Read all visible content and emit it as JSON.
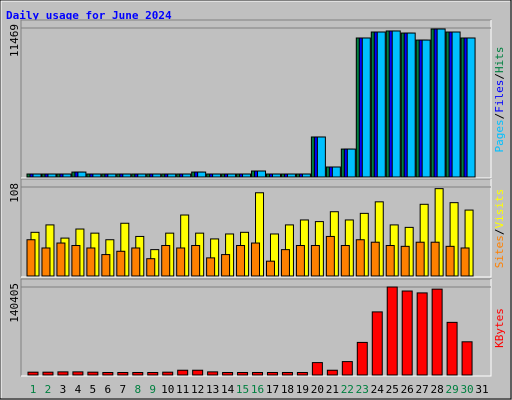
{
  "chart_data": [
    {
      "type": "bar",
      "title": "Daily usage for June 2024",
      "legend_separator": "/",
      "series": [
        {
          "name": "Hits",
          "color": "#008040",
          "values": [
            230,
            230,
            230,
            380,
            230,
            230,
            230,
            230,
            230,
            230,
            230,
            380,
            230,
            230,
            230,
            460,
            230,
            230,
            230,
            3080,
            770,
            2150,
            10700,
            11160,
            11240,
            11080,
            10540,
            11390,
            11160,
            10700,
            0
          ]
        },
        {
          "name": "Files",
          "color": "#0000ff",
          "values": [
            230,
            230,
            230,
            380,
            230,
            230,
            230,
            230,
            230,
            230,
            230,
            380,
            230,
            230,
            230,
            460,
            230,
            230,
            230,
            3080,
            770,
            2150,
            10700,
            11160,
            11240,
            11080,
            10540,
            11390,
            11160,
            10700,
            0
          ]
        },
        {
          "name": "Pages",
          "color": "#00c0ff",
          "values": [
            230,
            230,
            230,
            380,
            230,
            230,
            230,
            230,
            230,
            230,
            230,
            380,
            230,
            230,
            230,
            460,
            230,
            230,
            230,
            3080,
            770,
            2150,
            10700,
            11160,
            11240,
            11080,
            10540,
            11390,
            11160,
            10700,
            0
          ]
        }
      ],
      "ylim": [
        0,
        11469
      ],
      "yticks": [
        11469
      ]
    },
    {
      "type": "bar",
      "legend_separator": "/",
      "series": [
        {
          "name": "Visits",
          "color": "#ffff00",
          "values": [
            53,
            62,
            46,
            57,
            52,
            44,
            64,
            48,
            32,
            52,
            74,
            52,
            45,
            51,
            53,
            101,
            51,
            62,
            68,
            66,
            78,
            68,
            76,
            90,
            62,
            59,
            87,
            106,
            89,
            80,
            0
          ]
        },
        {
          "name": "Sites",
          "color": "#ff8000",
          "values": [
            44,
            34,
            40,
            37,
            34,
            26,
            30,
            34,
            21,
            37,
            34,
            37,
            22,
            26,
            37,
            40,
            18,
            32,
            37,
            37,
            48,
            37,
            44,
            41,
            37,
            36,
            41,
            41,
            36,
            34,
            0
          ]
        }
      ],
      "ylim": [
        0,
        108
      ],
      "yticks": [
        108
      ]
    },
    {
      "type": "bar",
      "categories": [
        "1",
        "2",
        "3",
        "4",
        "5",
        "6",
        "7",
        "8",
        "9",
        "10",
        "11",
        "12",
        "13",
        "14",
        "15",
        "16",
        "17",
        "18",
        "19",
        "20",
        "21",
        "22",
        "23",
        "24",
        "25",
        "26",
        "27",
        "28",
        "29",
        "30",
        "31"
      ],
      "category_colors": [
        "#008040",
        "#008040",
        "#000000",
        "#000000",
        "#000000",
        "#000000",
        "#000000",
        "#008040",
        "#008040",
        "#000000",
        "#000000",
        "#000000",
        "#000000",
        "#000000",
        "#008040",
        "#008040",
        "#000000",
        "#000000",
        "#000000",
        "#000000",
        "#000000",
        "#008040",
        "#008040",
        "#000000",
        "#000000",
        "#000000",
        "#000000",
        "#000000",
        "#008040",
        "#008040",
        "#000000"
      ],
      "series": [
        {
          "name": "KBytes",
          "color": "#ff0000",
          "values": [
            4500,
            4500,
            5000,
            5000,
            4500,
            4000,
            4000,
            4000,
            4000,
            4500,
            7600,
            7600,
            5000,
            4000,
            4000,
            4000,
            4000,
            4000,
            4000,
            19800,
            7600,
            21400,
            52000,
            100700,
            140405,
            134000,
            131000,
            137000,
            84000,
            53000,
            0
          ]
        }
      ],
      "ylim": [
        0,
        140405
      ],
      "yticks": [
        140405
      ]
    }
  ]
}
